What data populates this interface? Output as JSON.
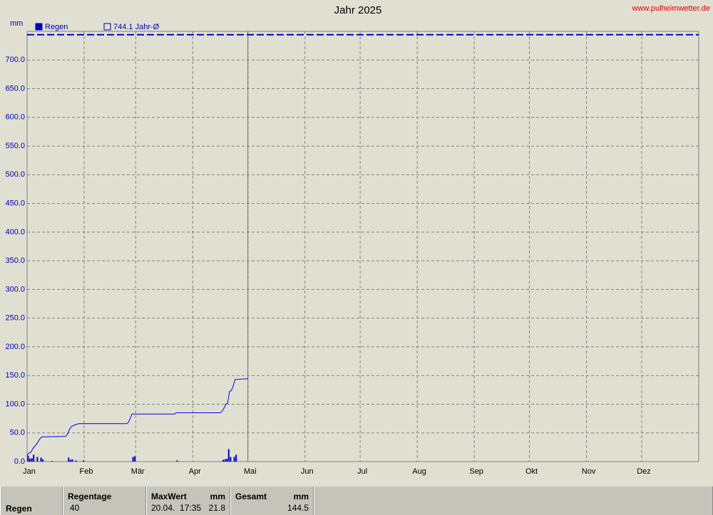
{
  "chart_data": {
    "type": "rain-year",
    "title": "Jahr 2025",
    "source": "www.pulheimwetter.de",
    "ylabel": "mm",
    "xlim": [
      0,
      365
    ],
    "ylim": [
      0,
      750
    ],
    "xticks": [
      {
        "value": 0,
        "label": "Jan"
      },
      {
        "value": 31,
        "label": "Feb"
      },
      {
        "value": 59,
        "label": "Mär"
      },
      {
        "value": 90,
        "label": "Apr"
      },
      {
        "value": 120,
        "label": "Mai"
      },
      {
        "value": 151,
        "label": "Jun"
      },
      {
        "value": 181,
        "label": "Jul"
      },
      {
        "value": 212,
        "label": "Aug"
      },
      {
        "value": 243,
        "label": "Sep"
      },
      {
        "value": 273,
        "label": "Okt"
      },
      {
        "value": 304,
        "label": "Nov"
      },
      {
        "value": 334,
        "label": "Dez"
      }
    ],
    "yticks": [
      {
        "value": 0,
        "label": "0.0"
      },
      {
        "value": 50,
        "label": "50.0"
      },
      {
        "value": 100,
        "label": "100.0"
      },
      {
        "value": 150,
        "label": "150.0"
      },
      {
        "value": 200,
        "label": "200.0"
      },
      {
        "value": 250,
        "label": "250.0"
      },
      {
        "value": 300,
        "label": "300.0"
      },
      {
        "value": 350,
        "label": "350.0"
      },
      {
        "value": 400,
        "label": "400.0"
      },
      {
        "value": 450,
        "label": "450.0"
      },
      {
        "value": 500,
        "label": "500.0"
      },
      {
        "value": 550,
        "label": "550.0"
      },
      {
        "value": 600,
        "label": "600.0"
      },
      {
        "value": 650,
        "label": "650.0"
      },
      {
        "value": 700,
        "label": "700.0"
      }
    ],
    "grid": true,
    "cursor_x": 120,
    "series": [
      {
        "name": "Regen",
        "kind": "bar",
        "color": "#0000c0",
        "x": [
          0,
          1,
          2,
          3,
          5,
          7,
          8,
          13,
          22,
          23,
          24,
          26,
          30,
          57,
          58,
          81,
          106,
          107,
          108,
          109,
          110,
          112,
          113
        ],
        "values": [
          10,
          5,
          6,
          12,
          8,
          7,
          4,
          1,
          7,
          3,
          4,
          2,
          2,
          8,
          9,
          2,
          3,
          4,
          5,
          21.8,
          8,
          8,
          12
        ]
      },
      {
        "name": "744.1 Jahr-Ø",
        "kind": "hline",
        "color": "#0000c0",
        "value": 744.1
      },
      {
        "kind": "line",
        "color": "#0000e0",
        "x": [
          0,
          1,
          2,
          3,
          5,
          7,
          8,
          21,
          22,
          23,
          24,
          26,
          28,
          54,
          55,
          56,
          57,
          80,
          81,
          105,
          106,
          107,
          108,
          109,
          110,
          111,
          112,
          113,
          120
        ],
        "values": [
          10,
          15,
          16,
          22,
          30,
          40,
          43,
          44,
          48,
          56,
          61,
          64,
          66,
          66,
          68,
          75,
          83,
          83,
          85,
          85,
          88,
          93,
          100,
          102,
          122,
          124,
          132,
          143,
          144.5
        ]
      }
    ]
  },
  "table": {
    "headers": [
      "Regentage",
      "MaxWert",
      "mm",
      "Gesamt",
      "mm"
    ],
    "rows": [
      [
        "Regen",
        "40",
        "20.04.  17:35",
        "21.8",
        "144.5"
      ]
    ]
  }
}
